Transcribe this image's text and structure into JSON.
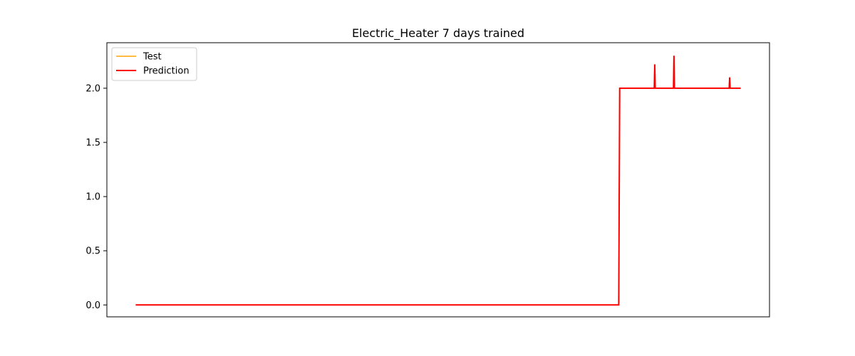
{
  "chart_data": {
    "type": "line",
    "title": "Electric_Heater 7 days trained",
    "xlabel": "",
    "ylabel": "",
    "xlim": [
      -3,
      66
    ],
    "ylim": [
      -0.11,
      2.42
    ],
    "yticks": [
      0.0,
      0.5,
      1.0,
      1.5,
      2.0
    ],
    "ytick_labels": [
      "0.0",
      "0.5",
      "1.0",
      "1.5",
      "2.0"
    ],
    "x_ticks_visible": false,
    "grid": false,
    "legend_position": "top-left",
    "series": [
      {
        "name": "Test",
        "color": "#ffa500",
        "x": [
          0,
          50.3,
          50.4,
          54.0,
          54.05,
          54.1,
          56.0,
          56.05,
          56.1,
          61.8,
          61.85,
          61.9,
          63.0
        ],
        "y": [
          0,
          0,
          2.0,
          2.0,
          2.22,
          2.0,
          2.0,
          2.3,
          2.0,
          2.0,
          2.1,
          2.0,
          2.0
        ]
      },
      {
        "name": "Prediction",
        "color": "#ff0000",
        "x": [
          0,
          50.3,
          50.4,
          54.0,
          54.05,
          54.1,
          56.0,
          56.05,
          56.1,
          61.8,
          61.85,
          61.9,
          63.0
        ],
        "y": [
          0,
          0,
          2.0,
          2.0,
          2.22,
          2.0,
          2.0,
          2.3,
          2.0,
          2.0,
          2.1,
          2.0,
          2.0
        ]
      }
    ]
  }
}
